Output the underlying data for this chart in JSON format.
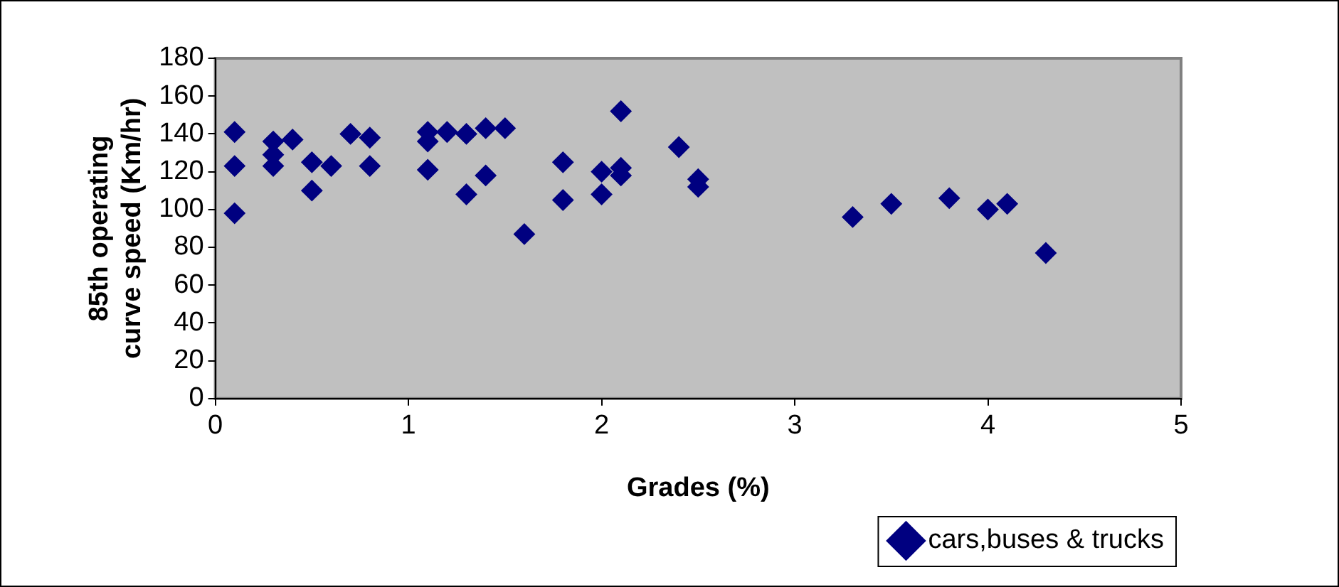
{
  "chart_data": {
    "type": "scatter",
    "xlabel": "Grades (%)",
    "ylabel": "85th operating\ncurve speed (Km/hr)",
    "xlim": [
      0,
      5
    ],
    "xticks": [
      0,
      1,
      2,
      3,
      4,
      5
    ],
    "ylim": [
      0,
      180
    ],
    "yticks": [
      0,
      20,
      40,
      60,
      80,
      100,
      120,
      140,
      160,
      180
    ],
    "grid": false,
    "legend": "bottom right",
    "marker": "diamond",
    "series": [
      {
        "name": "cars,buses & trucks",
        "color": "#000080",
        "x": [
          0.1,
          0.1,
          0.1,
          0.3,
          0.3,
          0.3,
          0.4,
          0.5,
          0.5,
          0.6,
          0.7,
          0.8,
          0.8,
          1.1,
          1.1,
          1.1,
          1.2,
          1.3,
          1.3,
          1.4,
          1.4,
          1.5,
          1.6,
          1.8,
          1.8,
          2.0,
          2.0,
          2.1,
          2.1,
          2.1,
          2.4,
          2.5,
          2.5,
          3.3,
          3.5,
          3.8,
          4.0,
          4.1,
          4.3
        ],
        "values": [
          141,
          123,
          98,
          136,
          129,
          123,
          137,
          125,
          110,
          123,
          140,
          138,
          123,
          141,
          136,
          121,
          141,
          140,
          108,
          143,
          118,
          143,
          87,
          125,
          105,
          120,
          108,
          152,
          122,
          118,
          133,
          116,
          112,
          96,
          103,
          106,
          100,
          103,
          77
        ]
      }
    ]
  }
}
